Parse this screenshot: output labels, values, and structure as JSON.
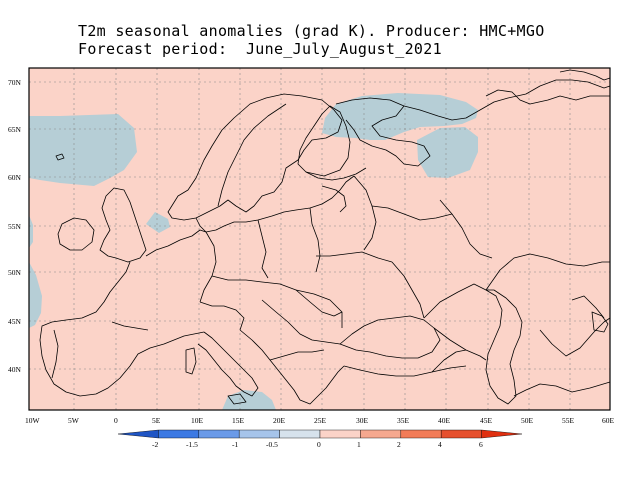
{
  "title": {
    "line1": "T2m seasonal anomalies (grad K). Producer: HMC+MGO",
    "line2": "Forecast period:  June_July_August_2021"
  },
  "colors": {
    "background_anomaly": "#fbd3c8",
    "negative_anomaly": "#b6ced6",
    "border": "#000000",
    "grid": "#888888"
  },
  "lat_labels": [
    "70N",
    "65N",
    "60N",
    "55N",
    "50N",
    "45N",
    "40N"
  ],
  "lon_labels": [
    "10W",
    "5W",
    "0",
    "5E",
    "10E",
    "15E",
    "20E",
    "25E",
    "30E",
    "35E",
    "40E",
    "45E",
    "50E",
    "55E",
    "60E"
  ],
  "colorbar": {
    "labels": [
      "-2",
      "-1.5",
      "-1",
      "-0.5",
      "0",
      "1",
      "2",
      "4",
      "6"
    ],
    "colors": [
      "#1f55c4",
      "#3c79e3",
      "#6a9ae8",
      "#a6c4ea",
      "#d6e2ec",
      "#fbd3c8",
      "#f5a88f",
      "#f27c58",
      "#e6502e",
      "#e03010"
    ]
  }
}
